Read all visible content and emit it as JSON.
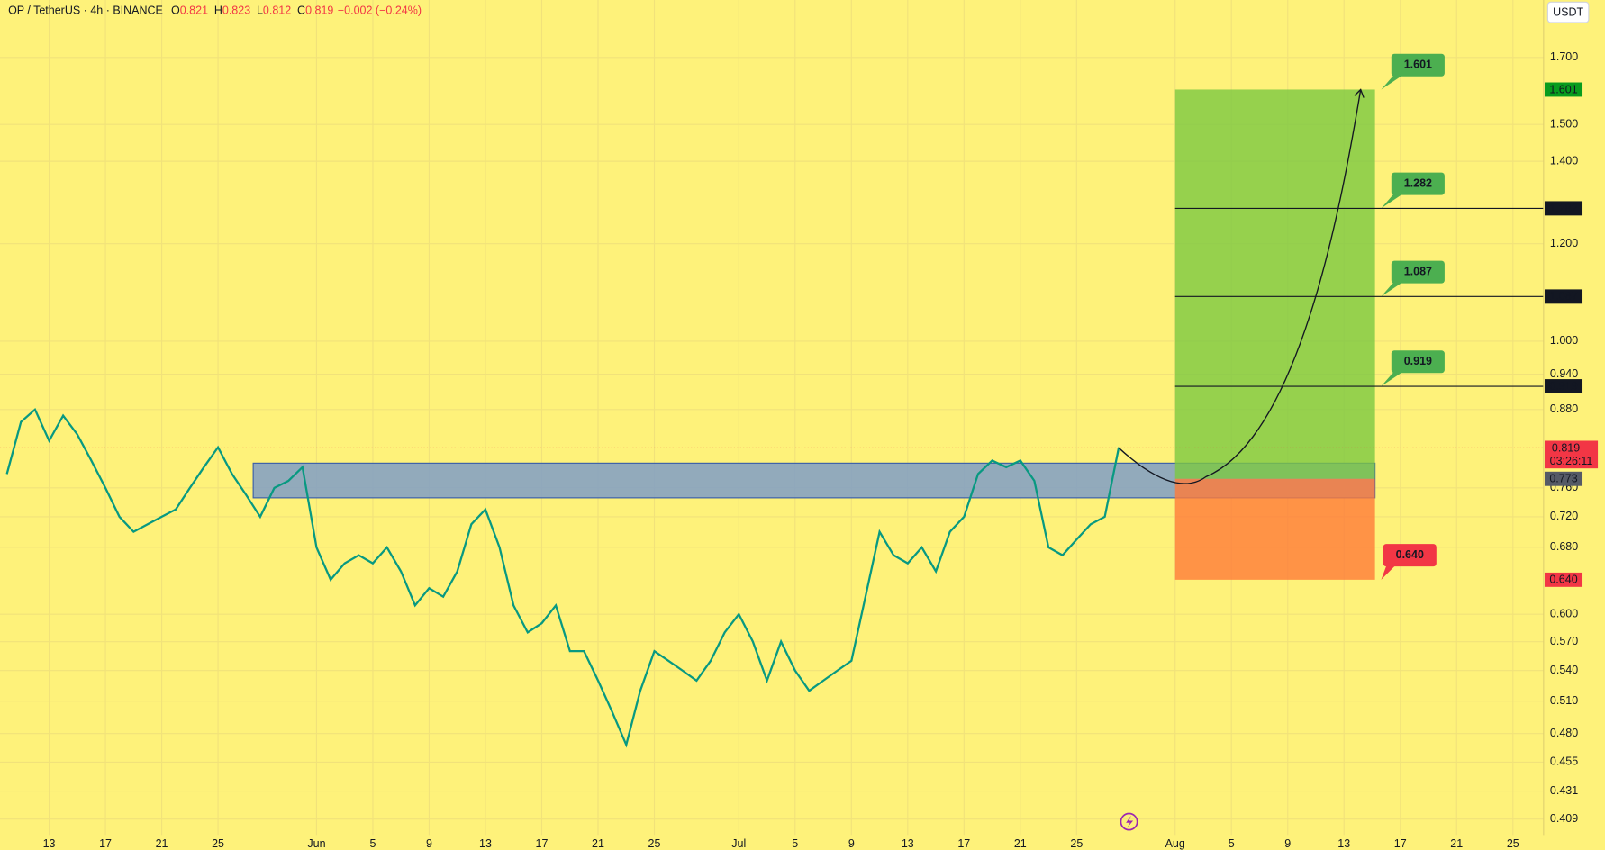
{
  "chart_data": {
    "type": "line",
    "title": "OP / TetherUS · 4h · BINANCE",
    "ohlc": [
      {
        "label": "O",
        "value": "0.821"
      },
      {
        "label": "H",
        "value": "0.823"
      },
      {
        "label": "L",
        "value": "0.812"
      },
      {
        "label": "C",
        "value": "0.819"
      }
    ],
    "change": "−0.002 (−0.24%)",
    "currency": "USDT",
    "color": "#089981",
    "x": [
      -3,
      -2,
      -1,
      0,
      1,
      2,
      3,
      4,
      5,
      6,
      7,
      8,
      9,
      10,
      11,
      12,
      13,
      14,
      15,
      16,
      17,
      18,
      19,
      20,
      21,
      22,
      23,
      24,
      25,
      26,
      27,
      28,
      29,
      30,
      31,
      32,
      33,
      34,
      35,
      36,
      37,
      38,
      39,
      40,
      41,
      42,
      43,
      44,
      45,
      46,
      47,
      48,
      49,
      50,
      51,
      52,
      53,
      54,
      55,
      56,
      57,
      58,
      59,
      60,
      61,
      62,
      63,
      64,
      65,
      66,
      67,
      68,
      69,
      70,
      71,
      72,
      73,
      74,
      75,
      76
    ],
    "values": [
      0.78,
      0.86,
      0.88,
      0.83,
      0.87,
      0.84,
      0.8,
      0.76,
      0.72,
      0.7,
      0.71,
      0.72,
      0.73,
      0.76,
      0.79,
      0.82,
      0.78,
      0.75,
      0.72,
      0.76,
      0.77,
      0.79,
      0.68,
      0.64,
      0.66,
      0.67,
      0.66,
      0.68,
      0.65,
      0.61,
      0.63,
      0.62,
      0.65,
      0.71,
      0.73,
      0.68,
      0.61,
      0.58,
      0.59,
      0.61,
      0.56,
      0.56,
      0.53,
      0.5,
      0.47,
      0.52,
      0.56,
      0.55,
      0.54,
      0.53,
      0.55,
      0.58,
      0.6,
      0.57,
      0.53,
      0.57,
      0.54,
      0.52,
      0.53,
      0.54,
      0.55,
      0.62,
      0.7,
      0.67,
      0.66,
      0.68,
      0.65,
      0.7,
      0.72,
      0.78,
      0.8,
      0.79,
      0.8,
      0.77,
      0.68,
      0.67,
      0.69,
      0.71,
      0.72,
      0.82
    ],
    "last_price": 0.819,
    "countdown": "03:26:11",
    "log_scale": true,
    "grid": true,
    "xlim": [
      -3.49,
      106.18
    ],
    "ylim": [
      0.397,
      1.893
    ],
    "xticks": [
      {
        "value": 0,
        "label": "13"
      },
      {
        "value": 4,
        "label": "17"
      },
      {
        "value": 8,
        "label": "21"
      },
      {
        "value": 12,
        "label": "25"
      },
      {
        "value": 19,
        "label": "Jun"
      },
      {
        "value": 23,
        "label": "5"
      },
      {
        "value": 27,
        "label": "9"
      },
      {
        "value": 31,
        "label": "13"
      },
      {
        "value": 35,
        "label": "17"
      },
      {
        "value": 39,
        "label": "21"
      },
      {
        "value": 43,
        "label": "25"
      },
      {
        "value": 49,
        "label": "Jul"
      },
      {
        "value": 53,
        "label": "5"
      },
      {
        "value": 57,
        "label": "9"
      },
      {
        "value": 61,
        "label": "13"
      },
      {
        "value": 65,
        "label": "17"
      },
      {
        "value": 69,
        "label": "21"
      },
      {
        "value": 73,
        "label": "25"
      },
      {
        "value": 80,
        "label": "Aug"
      },
      {
        "value": 84,
        "label": "5"
      },
      {
        "value": 88,
        "label": "9"
      },
      {
        "value": 92,
        "label": "13"
      },
      {
        "value": 96,
        "label": "17"
      },
      {
        "value": 100,
        "label": "21"
      },
      {
        "value": 104,
        "label": "25"
      }
    ],
    "yticks": [
      {
        "value": 1.7,
        "label": "1.700"
      },
      {
        "value": 1.5,
        "label": "1.500"
      },
      {
        "value": 1.4,
        "label": "1.400"
      },
      {
        "value": 1.2,
        "label": "1.200"
      },
      {
        "value": 1.0,
        "label": "1.000"
      },
      {
        "value": 0.94,
        "label": "0.940"
      },
      {
        "value": 0.88,
        "label": "0.880"
      },
      {
        "value": 0.76,
        "label": "0.760"
      },
      {
        "value": 0.72,
        "label": "0.720"
      },
      {
        "value": 0.68,
        "label": "0.680"
      },
      {
        "value": 0.6,
        "label": "0.600"
      },
      {
        "value": 0.57,
        "label": "0.570"
      },
      {
        "value": 0.54,
        "label": "0.540"
      },
      {
        "value": 0.51,
        "label": "0.510"
      },
      {
        "value": 0.48,
        "label": "0.480"
      },
      {
        "value": 0.455,
        "label": "0.455"
      },
      {
        "value": 0.431,
        "label": "0.431"
      },
      {
        "value": 0.409,
        "label": "0.409"
      }
    ],
    "zone": {
      "x": [
        14.5,
        94.2
      ],
      "low": 0.746,
      "high": 0.796,
      "color": "#7f9dc7"
    },
    "position": {
      "x": [
        80,
        94.2
      ],
      "entry": 0.773,
      "target": 1.601,
      "stop": {
        "value": 0.64,
        "label": "0.640"
      }
    },
    "targets": [
      0.919,
      1.087,
      1.282
    ]
  }
}
